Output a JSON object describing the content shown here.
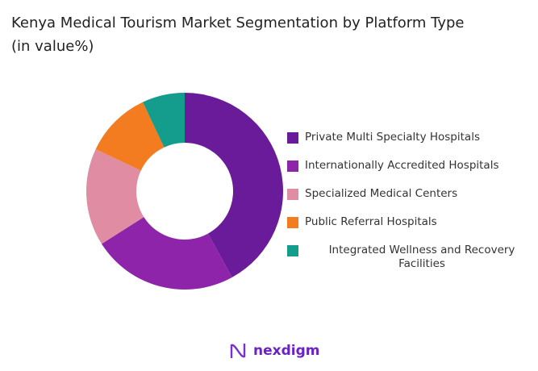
{
  "title": "Kenya Medical Tourism Market Segmentation by Platform Type",
  "subtitle": "(in value%)",
  "logo_text": "nexdigm",
  "chart_data": {
    "type": "pie",
    "donut": true,
    "title": "Kenya Medical Tourism Market Segmentation by Platform Type (in value%)",
    "categories": [
      "Private Multi Specialty Hospitals",
      "Internationally Accredited Hospitals",
      "Specialized Medical Centers",
      "Public Referral Hospitals",
      "Integrated Wellness and Recovery Facilities"
    ],
    "values": [
      42,
      24,
      16,
      11,
      7
    ],
    "colors": [
      "#6a1b9a",
      "#8e24aa",
      "#e08ca3",
      "#f47c20",
      "#149c8c"
    ],
    "legend_position": "right"
  }
}
